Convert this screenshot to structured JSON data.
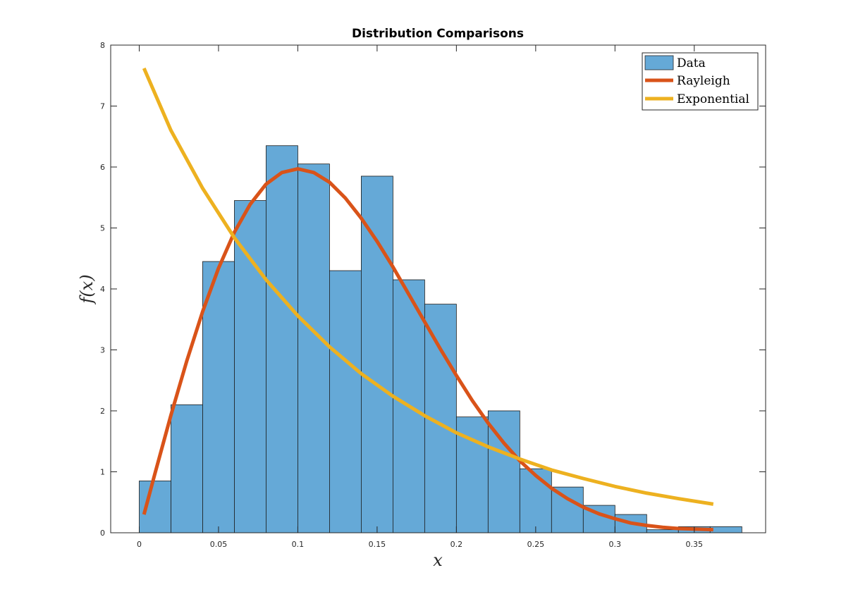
{
  "chart_data": {
    "type": "bar",
    "title": "Distribution Comparisons",
    "xlabel": "x",
    "ylabel": "f(x)",
    "xlim": [
      -0.018,
      0.395
    ],
    "ylim": [
      0,
      8
    ],
    "xticks": [
      0,
      0.05,
      0.1,
      0.15,
      0.2,
      0.25,
      0.3,
      0.35
    ],
    "xtick_labels": [
      "0",
      "0.05",
      "0.1",
      "0.15",
      "0.2",
      "0.25",
      "0.3",
      "0.35"
    ],
    "yticks": [
      0,
      1,
      2,
      3,
      4,
      5,
      6,
      7,
      8
    ],
    "ytick_labels": [
      "0",
      "1",
      "2",
      "3",
      "4",
      "5",
      "6",
      "7",
      "8"
    ],
    "grid": false,
    "legend_position": "top-right",
    "histogram": {
      "name": "Data",
      "color": "#65a9d7",
      "bin_edges": [
        0,
        0.02,
        0.04,
        0.06,
        0.08,
        0.1,
        0.12,
        0.14,
        0.16,
        0.18,
        0.2,
        0.22,
        0.24,
        0.26,
        0.28,
        0.3,
        0.32,
        0.34,
        0.36,
        0.38
      ],
      "values": [
        0.85,
        2.1,
        4.45,
        5.45,
        6.35,
        6.05,
        4.3,
        5.85,
        4.15,
        3.75,
        1.9,
        2.0,
        1.05,
        0.75,
        0.45,
        0.3,
        0.05,
        0.1,
        0.1
      ]
    },
    "series": [
      {
        "name": "Rayleigh",
        "color": "#d95319",
        "x": [
          0.003,
          0.01,
          0.02,
          0.03,
          0.04,
          0.05,
          0.06,
          0.07,
          0.08,
          0.09,
          0.1,
          0.11,
          0.12,
          0.13,
          0.14,
          0.15,
          0.16,
          0.17,
          0.18,
          0.19,
          0.2,
          0.21,
          0.22,
          0.23,
          0.24,
          0.25,
          0.26,
          0.27,
          0.28,
          0.29,
          0.3,
          0.31,
          0.32,
          0.33,
          0.34,
          0.35,
          0.362
        ],
        "y": [
          0.3,
          0.98,
          1.93,
          2.82,
          3.63,
          4.34,
          4.93,
          5.39,
          5.72,
          5.91,
          5.97,
          5.91,
          5.75,
          5.49,
          5.16,
          4.78,
          4.36,
          3.91,
          3.46,
          3.01,
          2.58,
          2.17,
          1.8,
          1.47,
          1.18,
          0.94,
          0.73,
          0.56,
          0.42,
          0.31,
          0.23,
          0.16,
          0.12,
          0.09,
          0.07,
          0.06,
          0.05
        ]
      },
      {
        "name": "Exponential",
        "color": "#edb120",
        "x": [
          0.003,
          0.02,
          0.04,
          0.06,
          0.08,
          0.1,
          0.12,
          0.14,
          0.16,
          0.18,
          0.2,
          0.22,
          0.24,
          0.26,
          0.28,
          0.3,
          0.32,
          0.34,
          0.362
        ],
        "y": [
          7.62,
          6.6,
          5.65,
          4.84,
          4.15,
          3.56,
          3.05,
          2.61,
          2.24,
          1.92,
          1.64,
          1.41,
          1.21,
          1.03,
          0.89,
          0.76,
          0.65,
          0.56,
          0.47
        ]
      }
    ]
  }
}
